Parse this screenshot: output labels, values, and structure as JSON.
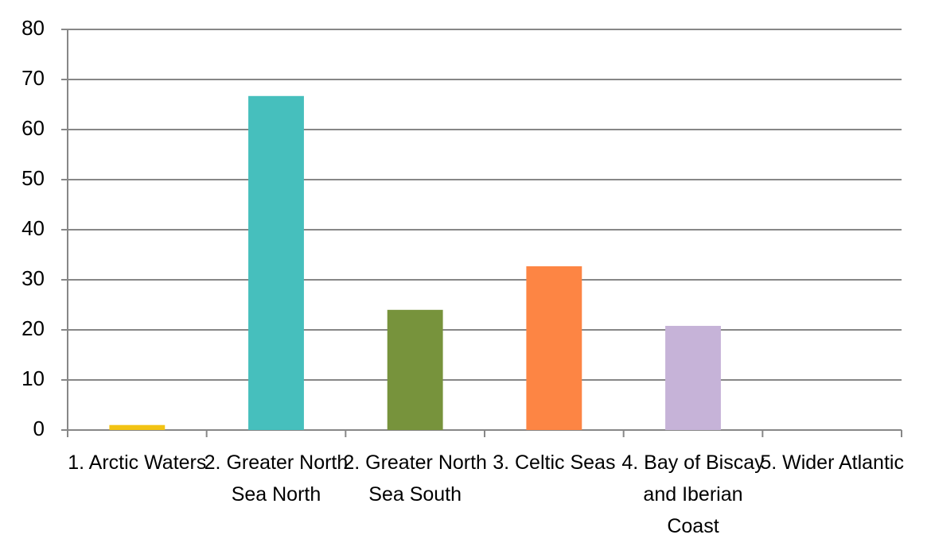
{
  "chart_data": {
    "type": "bar",
    "categories": [
      "1. Arctic Waters",
      "2. Greater North Sea North",
      "2. Greater North Sea South",
      "3. Celtic Seas",
      "4. Bay of Biscay and Iberian Coast",
      "5. Wider Atlantic"
    ],
    "values": [
      1,
      66.7,
      24,
      32.7,
      20.8,
      0
    ],
    "colors": [
      "#f2c314",
      "#46bfbd",
      "#77933c",
      "#fd8544",
      "#c6b3d8",
      "#4f81bd"
    ],
    "ylim": [
      0,
      80
    ],
    "yticks": [
      0,
      10,
      20,
      30,
      40,
      50,
      60,
      70,
      80
    ],
    "grid": true
  }
}
